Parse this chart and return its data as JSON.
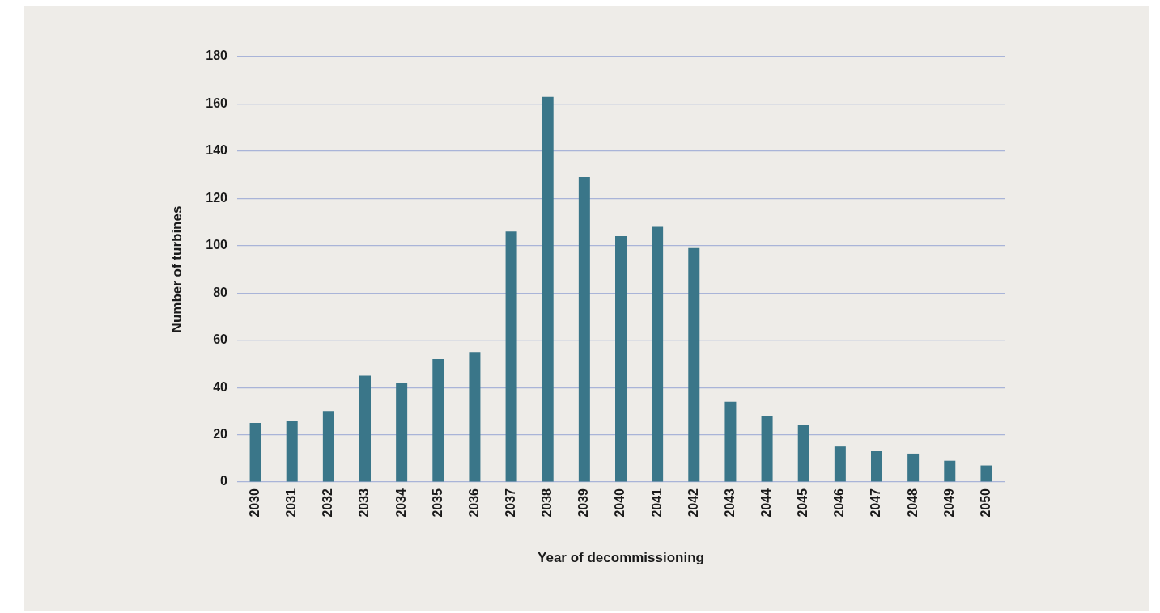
{
  "chart_data": {
    "type": "bar",
    "xlabel": "Year of decommissioning",
    "ylabel": "Number of turbines",
    "categories": [
      "2030",
      "2031",
      "2032",
      "2033",
      "2034",
      "2035",
      "2036",
      "2037",
      "2038",
      "2039",
      "2040",
      "2041",
      "2042",
      "2043",
      "2044",
      "2045",
      "2046",
      "2047",
      "2048",
      "2049",
      "2050"
    ],
    "values": [
      25,
      26,
      30,
      45,
      42,
      52,
      55,
      106,
      163,
      129,
      104,
      108,
      99,
      34,
      28,
      24,
      15,
      13,
      12,
      9,
      7
    ],
    "color": "#3a7689",
    "ylim": [
      0,
      180
    ],
    "yticks": [
      0,
      20,
      40,
      60,
      80,
      100,
      120,
      140,
      160,
      180
    ],
    "grid": "y",
    "legend": false
  }
}
